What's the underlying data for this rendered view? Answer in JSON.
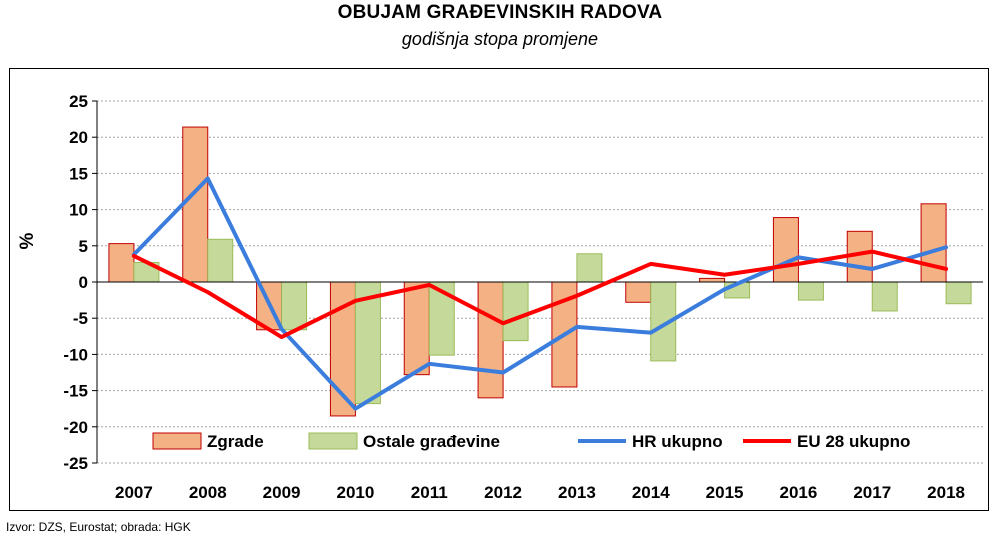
{
  "title": "OBUJAM GRAĐEVINSKIH RADOVA",
  "subtitle": "godišnja stopa promjene",
  "source": "Izvor: DZS, Eurostat; obrada: HGK",
  "chart_data": {
    "type": "bar",
    "title": "OBUJAM GRAĐEVINSKIH RADOVA",
    "subtitle": "godišnja stopa promjene",
    "xlabel": "",
    "ylabel": "%",
    "ylim": [
      -25,
      25
    ],
    "yticks": [
      25,
      20,
      15,
      10,
      5,
      0,
      -5,
      -10,
      -15,
      -20,
      -25
    ],
    "grid": true,
    "legend_position": "bottom",
    "categories": [
      "2007",
      "2008",
      "2009",
      "2010",
      "2011",
      "2012",
      "2013",
      "2014",
      "2015",
      "2016",
      "2017",
      "2018"
    ],
    "series": [
      {
        "name": "Zgrade",
        "type": "bar",
        "color": "#f4b183",
        "edge": "#c00000",
        "values": [
          5.3,
          21.4,
          -6.6,
          -18.5,
          -12.8,
          -16.0,
          -14.5,
          -2.8,
          0.5,
          8.9,
          7.0,
          10.8
        ]
      },
      {
        "name": "Ostale građevine",
        "type": "bar",
        "color": "#c5d99b",
        "edge": "#9bbb59",
        "values": [
          2.7,
          5.9,
          -6.6,
          -16.8,
          -10.1,
          -8.1,
          3.9,
          -10.9,
          -2.2,
          -2.5,
          -4.0,
          -3.0
        ]
      },
      {
        "name": "HR ukupno",
        "type": "line",
        "color": "#3b7ddd",
        "values": [
          3.8,
          14.3,
          -6.5,
          -17.5,
          -11.3,
          -12.5,
          -6.2,
          -7.0,
          -1.0,
          3.4,
          1.8,
          4.8
        ]
      },
      {
        "name": "EU 28 ukupno",
        "type": "line",
        "color": "#ff0000",
        "values": [
          3.6,
          -1.4,
          -7.6,
          -2.6,
          -0.4,
          -5.7,
          -1.9,
          2.5,
          1.0,
          2.5,
          4.2,
          1.8
        ]
      }
    ]
  }
}
